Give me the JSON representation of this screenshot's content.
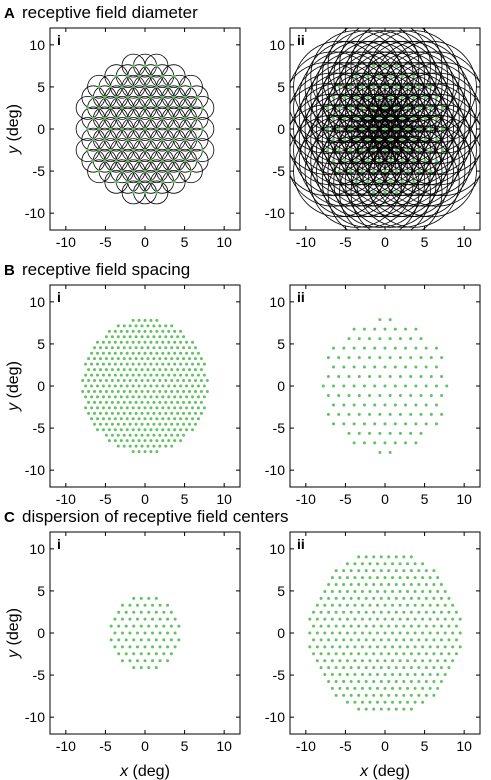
{
  "sections": [
    {
      "letter": "A",
      "title": "receptive field diameter"
    },
    {
      "letter": "B",
      "title": "receptive field spacing"
    },
    {
      "letter": "C",
      "title": "dispersion of receptive field centers"
    }
  ],
  "axes": {
    "x_title_var": "x",
    "x_title_unit": " (deg)",
    "y_title_var": "y",
    "y_title_unit": " (deg)",
    "ticks": [
      -10,
      -5,
      0,
      5,
      10
    ],
    "tick_labels": [
      "-10",
      "-5",
      "0",
      "5",
      "10"
    ]
  },
  "colors": {
    "dots": "#5fc35f",
    "circles": "#000000",
    "frame": "#000000"
  },
  "chart_data": [
    {
      "id": "A-i",
      "panel_label": "i",
      "type": "scatter",
      "xlim": [
        -12,
        12
      ],
      "ylim": [
        -12,
        12
      ],
      "center_spacing_deg": 1.45,
      "field_radius_deg": 7.9,
      "receptive_field_diameter_deg": 2.9
    },
    {
      "id": "A-ii",
      "panel_label": "ii",
      "type": "scatter",
      "xlim": [
        -12,
        12
      ],
      "ylim": [
        -12,
        12
      ],
      "center_spacing_deg": 1.45,
      "field_radius_deg": 7.9,
      "receptive_field_diameter_deg": 11.5
    },
    {
      "id": "B-i",
      "panel_label": "i",
      "type": "scatter",
      "xlim": [
        -12,
        12
      ],
      "ylim": [
        -12,
        12
      ],
      "center_spacing_deg": 0.75,
      "field_radius_deg": 8.0
    },
    {
      "id": "B-ii",
      "panel_label": "ii",
      "type": "scatter",
      "xlim": [
        -12,
        12
      ],
      "ylim": [
        -12,
        12
      ],
      "center_spacing_deg": 1.3,
      "field_radius_deg": 8.0
    },
    {
      "id": "C-i",
      "panel_label": "i",
      "type": "scatter",
      "xlim": [
        -12,
        12
      ],
      "ylim": [
        -12,
        12
      ],
      "center_spacing_deg": 0.95,
      "field_radius_deg": 4.7
    },
    {
      "id": "C-ii",
      "panel_label": "ii",
      "type": "scatter",
      "xlim": [
        -12,
        12
      ],
      "ylim": [
        -12,
        12
      ],
      "center_spacing_deg": 0.95,
      "field_radius_deg": 9.8
    }
  ]
}
